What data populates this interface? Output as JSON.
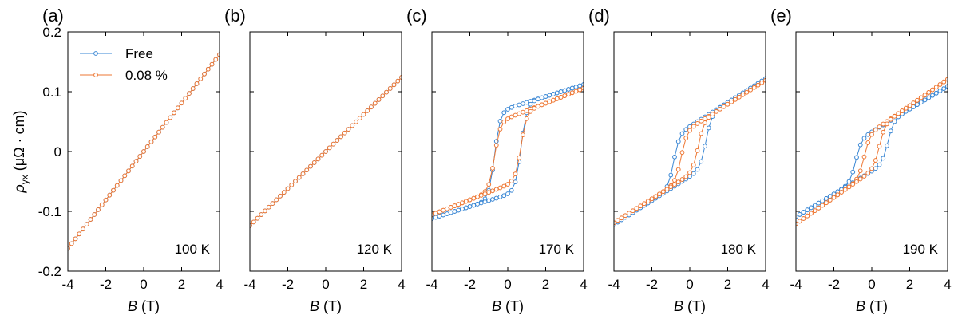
{
  "chart_data": {
    "type": "line",
    "figure_layout": "five panels in one row, shared y-axis",
    "series_styles": [
      {
        "name": "Free",
        "color": "#3a87d4",
        "marker": "open-circle"
      },
      {
        "name": "0.08 %",
        "color": "#ee7733",
        "marker": "open-circle"
      }
    ],
    "legend": {
      "position": "top-left of panel (a)",
      "entries": [
        "Free",
        "0.08 %"
      ]
    },
    "y_axis": {
      "label_symbol": "ρ",
      "label_subscript": "yx",
      "label_unit": " (μΩ · cm)",
      "ylim": [
        -0.2,
        0.2
      ],
      "ticks": [
        -0.2,
        -0.1,
        0,
        0.1,
        0.2
      ],
      "tick_labels": [
        "-0.2",
        "-0.1",
        "0",
        "0.1",
        "0.2"
      ]
    },
    "x_axis": {
      "label_symbol": "B",
      "label_unit": " (T)",
      "xlim": [
        -4,
        4
      ],
      "ticks": [
        -4,
        -2,
        0,
        2,
        4
      ],
      "tick_labels": [
        "-4",
        "-2",
        "0",
        "2",
        "4"
      ]
    },
    "panels": [
      {
        "letter": "(a)",
        "temperature": "100 K",
        "series": [
          {
            "name": "Free",
            "model": "linear",
            "slope": 0.0405,
            "offset": 0,
            "step": 0.2
          },
          {
            "name": "0.08 %",
            "model": "linear",
            "slope": 0.0405,
            "offset": 0,
            "step": 0.2
          }
        ]
      },
      {
        "letter": "(b)",
        "temperature": "120 K",
        "series": [
          {
            "name": "Free",
            "model": "linear",
            "slope": 0.031,
            "offset": 0,
            "step": 0.2
          },
          {
            "name": "0.08 %",
            "model": "linear",
            "slope": 0.031,
            "offset": 0,
            "step": 0.2
          }
        ]
      },
      {
        "letter": "(c)",
        "temperature": "170 K",
        "series": [
          {
            "name": "Free",
            "model": "hysteresis",
            "coercive_field": 0.7,
            "jump_width": 0.3,
            "peak": 0.077,
            "peak_position": 0.5,
            "high_field_slope": 0.01,
            "step": 0.2
          },
          {
            "name": "0.08 %",
            "model": "hysteresis",
            "coercive_field": 0.7,
            "jump_width": 0.3,
            "peak": 0.062,
            "peak_position": 0.5,
            "high_field_slope": 0.0125,
            "step": 0.2
          }
        ]
      },
      {
        "letter": "(d)",
        "temperature": "180 K",
        "series": [
          {
            "name": "Free",
            "model": "hysteresis",
            "coercive_field": 0.85,
            "jump_width": 0.3,
            "peak": 0.062,
            "peak_position": 1.0,
            "high_field_slope": 0.02,
            "step": 0.2
          },
          {
            "name": "0.08 %",
            "model": "hysteresis",
            "coercive_field": 0.45,
            "jump_width": 0.3,
            "peak": 0.051,
            "peak_position": 0.6,
            "high_field_slope": 0.02,
            "step": 0.2
          }
        ]
      },
      {
        "letter": "(e)",
        "temperature": "190 K",
        "series": [
          {
            "name": "Free",
            "model": "hysteresis",
            "coercive_field": 0.85,
            "jump_width": 0.3,
            "peak": 0.052,
            "peak_position": 1.0,
            "high_field_slope": 0.019,
            "step": 0.2
          },
          {
            "name": "0.08 %",
            "model": "hysteresis",
            "coercive_field": 0.4,
            "jump_width": 0.3,
            "peak": 0.046,
            "peak_position": 0.6,
            "high_field_slope": 0.022,
            "step": 0.2
          }
        ]
      }
    ]
  }
}
